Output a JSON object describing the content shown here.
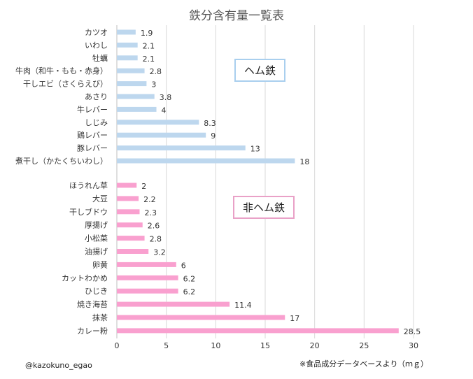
{
  "title": "鉄分含有量一覧表",
  "legend_heme": "ヘム鉄",
  "legend_nonheme": "非ヘム鉄",
  "credit": "@kazokuno_egao",
  "source": "※食品成分データベースより",
  "unit": "（ｍｇ）",
  "colors": {
    "heme": "#bdd7ee",
    "nonheme": "#f9a0cf",
    "grid": "#d9d9d9",
    "axis": "#bfbfbf"
  },
  "chart_data": {
    "type": "bar",
    "orientation": "horizontal",
    "xlim": [
      0,
      30
    ],
    "xticks": [
      0,
      5,
      10,
      15,
      20,
      25,
      30
    ],
    "grid": true,
    "groups": [
      {
        "name": "ヘム鉄",
        "categories": [
          "カツオ",
          "いわし",
          "牡蠣",
          "牛肉（和牛・もも・赤身）",
          "干しエビ（さくらえび）",
          "あさり",
          "牛レバー",
          "しじみ",
          "鶏レバー",
          "豚レバー",
          "煮干し（かたくちいわし）"
        ],
        "values": [
          1.9,
          2.1,
          2.1,
          2.8,
          3,
          3.8,
          4,
          8.3,
          9,
          13,
          18
        ],
        "labels": [
          "1.9",
          "2.1",
          "2.1",
          "2.8",
          "3",
          "3.8",
          "4",
          "8.3",
          "9",
          "13",
          "18"
        ]
      },
      {
        "name": "非ヘム鉄",
        "categories": [
          "ほうれん草",
          "大豆",
          "干しブドウ",
          "厚揚げ",
          "小松菜",
          "油揚げ",
          "卵黄",
          "カットわかめ",
          "ひじき",
          "焼き海苔",
          "抹茶",
          "カレー粉"
        ],
        "values": [
          2,
          2.2,
          2.3,
          2.6,
          2.8,
          3.2,
          6,
          6.2,
          6.2,
          11.4,
          17,
          28.5
        ],
        "labels": [
          "2",
          "2.2",
          "2.3",
          "2.6",
          "2.8",
          "3.2",
          "6",
          "6.2",
          "6.2",
          "11.4",
          "17",
          "28.5"
        ]
      }
    ]
  }
}
